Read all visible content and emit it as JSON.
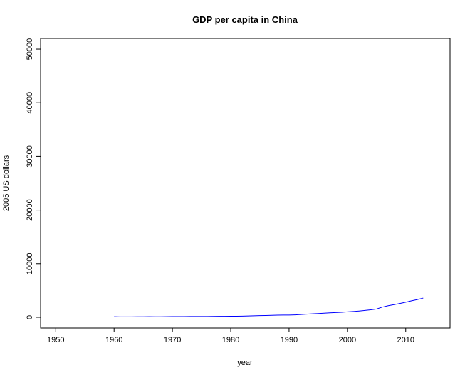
{
  "chart_data": {
    "type": "line",
    "title": "GDP per capita in China",
    "xlabel": "year",
    "ylabel": "2005 US dollars",
    "color": "#0000ff",
    "x": [
      1960,
      1961,
      1962,
      1963,
      1964,
      1965,
      1966,
      1967,
      1968,
      1969,
      1970,
      1971,
      1972,
      1973,
      1974,
      1975,
      1976,
      1977,
      1978,
      1979,
      1980,
      1981,
      1982,
      1983,
      1984,
      1985,
      1986,
      1987,
      1988,
      1989,
      1990,
      1991,
      1992,
      1993,
      1994,
      1995,
      1996,
      1997,
      1998,
      1999,
      2000,
      2001,
      2002,
      2003,
      2004,
      2005,
      2006,
      2007,
      2008,
      2009,
      2010,
      2011,
      2012,
      2013
    ],
    "values": [
      105,
      76,
      71,
      78,
      90,
      103,
      111,
      101,
      95,
      109,
      127,
      133,
      135,
      143,
      144,
      152,
      146,
      155,
      172,
      183,
      195,
      202,
      218,
      239,
      272,
      305,
      328,
      361,
      396,
      406,
      416,
      449,
      506,
      570,
      636,
      698,
      759,
      821,
      876,
      932,
      1002,
      1076,
      1164,
      1272,
      1391,
      1537,
      1900,
      2150,
      2350,
      2570,
      2800,
      3070,
      3300,
      3580
    ],
    "xlim": [
      1947.4,
      2017.6
    ],
    "xticks": [
      1950,
      1960,
      1970,
      1980,
      1990,
      2000,
      2010
    ],
    "ylim": [
      -2000,
      52000
    ],
    "yticks": [
      0,
      10000,
      20000,
      30000,
      40000,
      50000
    ]
  }
}
